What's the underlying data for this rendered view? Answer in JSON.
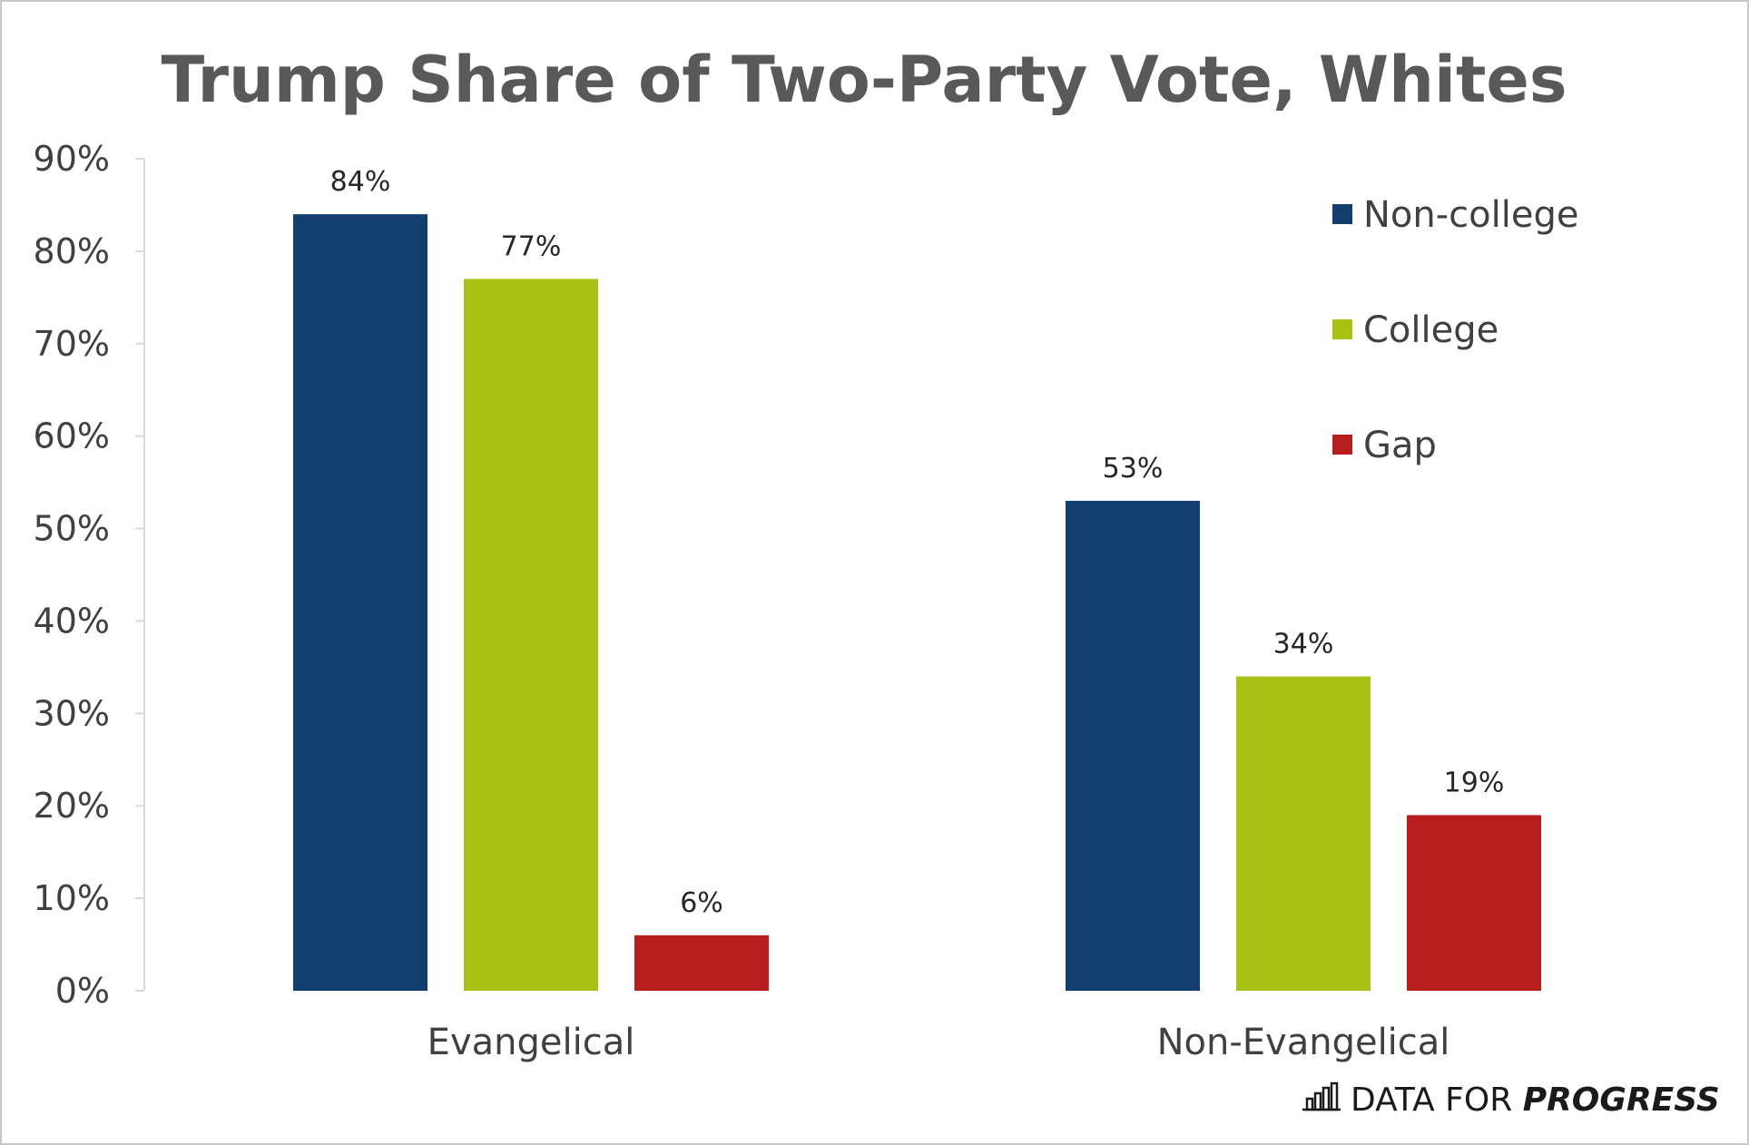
{
  "chart_data": {
    "type": "bar",
    "title": "Trump Share of Two-Party Vote, Whites",
    "xlabel": "",
    "ylabel": "",
    "ylim": [
      0,
      90
    ],
    "yticks": [
      "0%",
      "10%",
      "20%",
      "30%",
      "40%",
      "50%",
      "60%",
      "70%",
      "80%",
      "90%"
    ],
    "categories": [
      "Evangelical",
      "Non-Evangelical"
    ],
    "series": [
      {
        "name": "Non-college",
        "color": "#133f6f",
        "values": [
          84,
          53
        ],
        "labels": [
          "84%",
          "53%"
        ]
      },
      {
        "name": "College",
        "color": "#a8c114",
        "values": [
          77,
          34
        ],
        "labels": [
          "77%",
          "34%"
        ]
      },
      {
        "name": "Gap",
        "color": "#b61d1d",
        "values": [
          6,
          19
        ],
        "labels": [
          "6%",
          "19%"
        ]
      }
    ],
    "legend_position": "top-right",
    "grid": false
  },
  "branding": {
    "prefix": "DATA FOR ",
    "emphasis": "PROGRESS",
    "icon": "bar-chart-icon"
  }
}
